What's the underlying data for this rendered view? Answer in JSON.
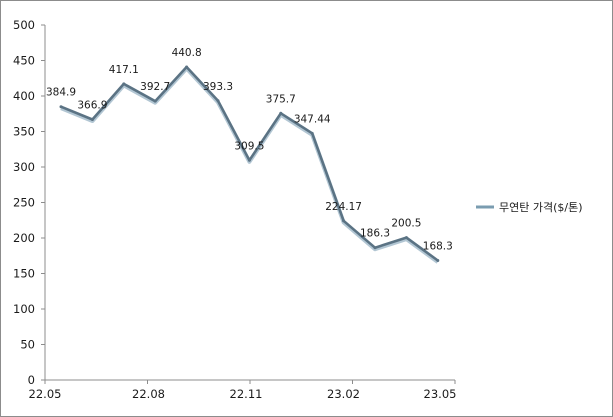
{
  "chart_data": {
    "type": "line",
    "title": "",
    "xlabel": "",
    "ylabel": "",
    "ylim": [
      0,
      500
    ],
    "yticks": [
      "0",
      "50",
      "100",
      "150",
      "200",
      "250",
      "300",
      "350",
      "400",
      "450",
      "500"
    ],
    "x_tick_labels": [
      "22.05",
      "22.08",
      "22.11",
      "23.02",
      "23.05"
    ],
    "grid": false,
    "legend_position": "right",
    "series": [
      {
        "name": "무연탄 가격($/톤)",
        "color": "#5b7384",
        "values": [
          384.9,
          366.9,
          417.1,
          392.7,
          440.8,
          393.3,
          309.5,
          375.7,
          347.44,
          224.17,
          186.3,
          200.5,
          168.3
        ],
        "labels": [
          "384.9",
          "366.9",
          "417.1",
          "392.7",
          "440.8",
          "393.3",
          "309.5",
          "375.7",
          "347.44",
          "224.17",
          "186.3",
          "200.5",
          "168.3"
        ]
      }
    ]
  }
}
